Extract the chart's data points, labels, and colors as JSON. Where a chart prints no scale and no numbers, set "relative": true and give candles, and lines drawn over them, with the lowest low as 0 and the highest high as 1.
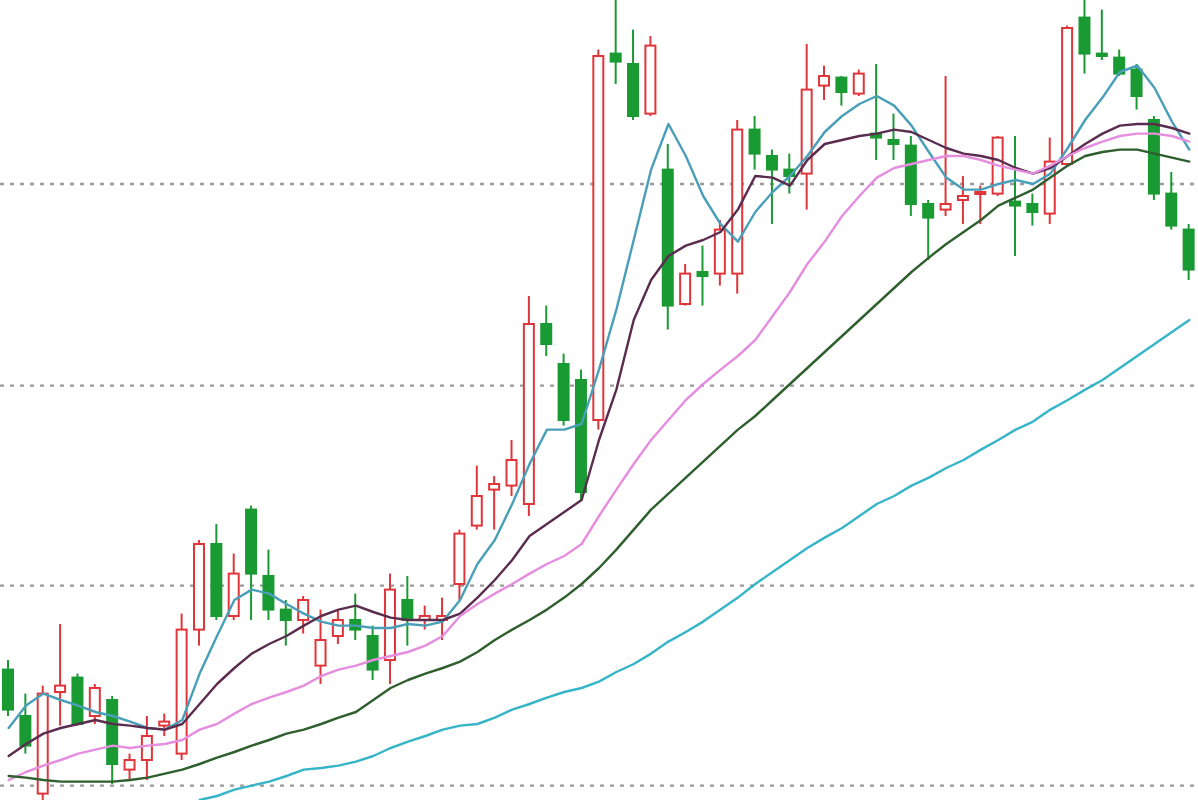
{
  "chart_data": {
    "type": "candlestick",
    "relative": true,
    "grid": "y",
    "categories": [
      null,
      null,
      null,
      null,
      null,
      null,
      null,
      null,
      null,
      null,
      null,
      null,
      null,
      null,
      null,
      null,
      null,
      null,
      null,
      null,
      null,
      null,
      null,
      null,
      null,
      null,
      null,
      null,
      null,
      null,
      null,
      null,
      null,
      null,
      null,
      null,
      null,
      null,
      null,
      null,
      null,
      null,
      null,
      null,
      null,
      null,
      null,
      null,
      null,
      null,
      null,
      null,
      null,
      null,
      null,
      null,
      null,
      null,
      null,
      null,
      null,
      null,
      null,
      null,
      null,
      null,
      null,
      null,
      null
    ],
    "ohlc": [
      [
        0.163,
        0.175,
        0.105,
        0.113
      ],
      [
        0.105,
        0.133,
        0.058,
        0.068
      ],
      [
        0.008,
        0.143,
        0,
        0.133
      ],
      [
        0.135,
        0.22,
        0.093,
        0.143
      ],
      [
        0.153,
        0.158,
        0.093,
        0.095
      ],
      [
        0.105,
        0.145,
        0.095,
        0.14
      ],
      [
        0.125,
        0.13,
        0.02,
        0.045
      ],
      [
        0.038,
        0.058,
        0.025,
        0.05
      ],
      [
        0.05,
        0.105,
        0.025,
        0.08
      ],
      [
        0.093,
        0.108,
        0.08,
        0.098
      ],
      [
        0.058,
        0.233,
        0.05,
        0.213
      ],
      [
        0.213,
        0.325,
        0.193,
        0.32
      ],
      [
        0.32,
        0.345,
        0.225,
        0.23
      ],
      [
        0.23,
        0.308,
        0.225,
        0.283
      ],
      [
        0.363,
        0.368,
        0.225,
        0.283
      ],
      [
        0.28,
        0.313,
        0.225,
        0.238
      ],
      [
        0.238,
        0.25,
        0.193,
        0.225
      ],
      [
        0.225,
        0.255,
        0.208,
        0.25
      ],
      [
        0.168,
        0.238,
        0.145,
        0.2
      ],
      [
        0.205,
        0.238,
        0.195,
        0.225
      ],
      [
        0.225,
        0.258,
        0.2,
        0.213
      ],
      [
        0.205,
        0.218,
        0.15,
        0.163
      ],
      [
        0.175,
        0.283,
        0.145,
        0.263
      ],
      [
        0.25,
        0.28,
        0.193,
        0.225
      ],
      [
        0.225,
        0.243,
        0.213,
        0.23
      ],
      [
        0.225,
        0.253,
        0.2,
        0.23
      ],
      [
        0.27,
        0.338,
        0.25,
        0.333
      ],
      [
        0.343,
        0.418,
        0.338,
        0.38
      ],
      [
        0.388,
        0.405,
        0.338,
        0.395
      ],
      [
        0.393,
        0.45,
        0.38,
        0.425
      ],
      [
        0.37,
        0.63,
        0.355,
        0.595
      ],
      [
        0.595,
        0.618,
        0.555,
        0.57
      ],
      [
        0.545,
        0.558,
        0.468,
        0.475
      ],
      [
        0.525,
        0.538,
        0.375,
        0.385
      ],
      [
        0.475,
        0.938,
        0.463,
        0.93
      ],
      [
        0.933,
        1,
        0.895,
        0.923
      ],
      [
        0.92,
        0.963,
        0.85,
        0.855
      ],
      [
        0.858,
        0.955,
        0.855,
        0.943
      ],
      [
        0.788,
        0.82,
        0.588,
        0.618
      ],
      [
        0.62,
        0.67,
        0.618,
        0.658
      ],
      [
        0.66,
        0.693,
        0.618,
        0.655
      ],
      [
        0.658,
        0.725,
        0.643,
        0.713
      ],
      [
        0.658,
        0.85,
        0.633,
        0.838
      ],
      [
        0.838,
        0.855,
        0.788,
        0.808
      ],
      [
        0.805,
        0.813,
        0.72,
        0.788
      ],
      [
        0.788,
        0.808,
        0.758,
        0.78
      ],
      [
        0.783,
        0.945,
        0.738,
        0.888
      ],
      [
        0.893,
        0.918,
        0.875,
        0.905
      ],
      [
        0.903,
        0.905,
        0.868,
        0.885
      ],
      [
        0.883,
        0.913,
        0.88,
        0.908
      ],
      [
        0.833,
        0.92,
        0.8,
        0.828
      ],
      [
        0.825,
        0.858,
        0.8,
        0.82
      ],
      [
        0.818,
        0.83,
        0.73,
        0.745
      ],
      [
        0.745,
        0.75,
        0.675,
        0.728
      ],
      [
        0.738,
        0.905,
        0.73,
        0.745
      ],
      [
        0.75,
        0.78,
        0.72,
        0.755
      ],
      [
        0.758,
        0.768,
        0.72,
        0.76
      ],
      [
        0.758,
        0.83,
        0.755,
        0.828
      ],
      [
        0.748,
        0.83,
        0.68,
        0.743
      ],
      [
        0.745,
        0.758,
        0.718,
        0.735
      ],
      [
        0.733,
        0.828,
        0.72,
        0.798
      ],
      [
        0.795,
        0.968,
        0.793,
        0.965
      ],
      [
        0.978,
        1,
        0.908,
        0.933
      ],
      [
        0.933,
        0.988,
        0.925,
        0.93
      ],
      [
        0.928,
        0.938,
        0.905,
        0.908
      ],
      [
        0.913,
        0.92,
        0.863,
        0.88
      ],
      [
        0.85,
        0.855,
        0.75,
        0.758
      ],
      [
        0.758,
        0.785,
        0.713,
        0.718
      ],
      [
        0.713,
        0.72,
        0.65,
        0.663
      ]
    ],
    "colors": [
      "#1a9a33",
      "#1a9a33",
      "#e0353a",
      "#e0353a",
      "#1a9a33",
      "#e0353a",
      "#1a9a33",
      "#e0353a",
      "#e0353a",
      "#e0353a",
      "#e0353a",
      "#e0353a",
      "#1a9a33",
      "#e0353a",
      "#1a9a33",
      "#1a9a33",
      "#1a9a33",
      "#e0353a",
      "#e0353a",
      "#e0353a",
      "#1a9a33",
      "#1a9a33",
      "#e0353a",
      "#1a9a33",
      "#e0353a",
      "#e0353a",
      "#e0353a",
      "#e0353a",
      "#e0353a",
      "#e0353a",
      "#e0353a",
      "#1a9a33",
      "#1a9a33",
      "#1a9a33",
      "#e0353a",
      "#1a9a33",
      "#1a9a33",
      "#e0353a",
      "#1a9a33",
      "#e0353a",
      "#1a9a33",
      "#e0353a",
      "#e0353a",
      "#1a9a33",
      "#1a9a33",
      "#1a9a33",
      "#e0353a",
      "#e0353a",
      "#1a9a33",
      "#e0353a",
      "#1a9a33",
      "#1a9a33",
      "#1a9a33",
      "#1a9a33",
      "#e0353a",
      "#e0353a",
      "#e0353a",
      "#e0353a",
      "#1a9a33",
      "#1a9a33",
      "#e0353a",
      "#e0353a",
      "#1a9a33",
      "#1a9a33",
      "#1a9a33",
      "#1a9a33",
      "#1a9a33",
      "#1a9a33",
      "#1a9a33"
    ],
    "series": [
      {
        "type": "line",
        "color": "#4a9fb8",
        "values": [
          0.09,
          0.118,
          0.133,
          0.125,
          0.118,
          0.11,
          0.105,
          0.098,
          0.09,
          0.088,
          0.1,
          0.158,
          0.205,
          0.25,
          0.263,
          0.258,
          0.245,
          0.233,
          0.223,
          0.218,
          0.218,
          0.215,
          0.215,
          0.22,
          0.218,
          0.223,
          0.25,
          0.295,
          0.325,
          0.37,
          0.42,
          0.463,
          0.463,
          0.47,
          0.538,
          0.613,
          0.7,
          0.788,
          0.845,
          0.805,
          0.755,
          0.72,
          0.698,
          0.735,
          0.76,
          0.78,
          0.805,
          0.835,
          0.855,
          0.87,
          0.88,
          0.868,
          0.843,
          0.81,
          0.778,
          0.763,
          0.763,
          0.77,
          0.775,
          0.77,
          0.783,
          0.815,
          0.85,
          0.878,
          0.91,
          0.918,
          0.89,
          0.848,
          0.813
        ]
      },
      {
        "type": "line",
        "color": "#5a2d4f",
        "values": [
          0.055,
          0.07,
          0.083,
          0.09,
          0.095,
          0.1,
          0.095,
          0.093,
          0.09,
          0.088,
          0.095,
          0.12,
          0.145,
          0.165,
          0.183,
          0.195,
          0.205,
          0.218,
          0.23,
          0.238,
          0.243,
          0.235,
          0.228,
          0.225,
          0.225,
          0.225,
          0.233,
          0.253,
          0.275,
          0.3,
          0.33,
          0.345,
          0.36,
          0.375,
          0.45,
          0.513,
          0.6,
          0.65,
          0.68,
          0.693,
          0.7,
          0.71,
          0.738,
          0.78,
          0.778,
          0.768,
          0.8,
          0.82,
          0.825,
          0.83,
          0.833,
          0.838,
          0.835,
          0.825,
          0.815,
          0.808,
          0.805,
          0.8,
          0.79,
          0.783,
          0.79,
          0.805,
          0.82,
          0.833,
          0.843,
          0.845,
          0.845,
          0.84,
          0.833
        ]
      },
      {
        "type": "line",
        "color": "#e58ee0",
        "values": [
          0.025,
          0.035,
          0.043,
          0.05,
          0.058,
          0.063,
          0.068,
          0.065,
          0.068,
          0.07,
          0.075,
          0.088,
          0.095,
          0.108,
          0.12,
          0.128,
          0.135,
          0.143,
          0.155,
          0.163,
          0.168,
          0.175,
          0.18,
          0.185,
          0.193,
          0.205,
          0.23,
          0.245,
          0.258,
          0.27,
          0.283,
          0.295,
          0.305,
          0.32,
          0.355,
          0.388,
          0.42,
          0.45,
          0.475,
          0.5,
          0.52,
          0.538,
          0.555,
          0.575,
          0.605,
          0.635,
          0.67,
          0.698,
          0.73,
          0.755,
          0.778,
          0.79,
          0.795,
          0.8,
          0.805,
          0.805,
          0.8,
          0.793,
          0.788,
          0.783,
          0.793,
          0.805,
          0.815,
          0.823,
          0.83,
          0.833,
          0.833,
          0.83,
          0.823
        ]
      },
      {
        "type": "line",
        "color": "#2f5f2f",
        "values": [
          0.03,
          0.028,
          0.025,
          0.023,
          0.023,
          0.023,
          0.023,
          0.025,
          0.028,
          0.033,
          0.038,
          0.045,
          0.053,
          0.06,
          0.068,
          0.075,
          0.083,
          0.088,
          0.095,
          0.103,
          0.11,
          0.125,
          0.14,
          0.15,
          0.158,
          0.165,
          0.173,
          0.185,
          0.2,
          0.213,
          0.225,
          0.238,
          0.253,
          0.27,
          0.29,
          0.313,
          0.338,
          0.363,
          0.383,
          0.403,
          0.423,
          0.443,
          0.463,
          0.48,
          0.5,
          0.52,
          0.54,
          0.56,
          0.58,
          0.6,
          0.62,
          0.64,
          0.66,
          0.678,
          0.695,
          0.71,
          0.725,
          0.743,
          0.753,
          0.763,
          0.778,
          0.793,
          0.805,
          0.81,
          0.813,
          0.813,
          0.808,
          0.803,
          0.798
        ]
      },
      {
        "type": "line",
        "color": "#37b5c8",
        "values": [
          null,
          null,
          null,
          null,
          null,
          null,
          null,
          null,
          null,
          null,
          null,
          0,
          0.005,
          0.013,
          0.018,
          0.023,
          0.03,
          0.038,
          0.04,
          0.043,
          0.048,
          0.055,
          0.065,
          0.073,
          0.08,
          0.088,
          0.093,
          0.095,
          0.103,
          0.113,
          0.12,
          0.128,
          0.135,
          0.14,
          0.148,
          0.16,
          0.17,
          0.183,
          0.198,
          0.21,
          0.223,
          0.238,
          0.253,
          0.27,
          0.285,
          0.3,
          0.315,
          0.328,
          0.34,
          0.355,
          0.37,
          0.38,
          0.393,
          0.403,
          0.415,
          0.425,
          0.438,
          0.45,
          0.463,
          0.473,
          0.488,
          0.5,
          0.513,
          0.525,
          0.54,
          0.555,
          0.57,
          0.585,
          0.6
        ]
      }
    ]
  }
}
